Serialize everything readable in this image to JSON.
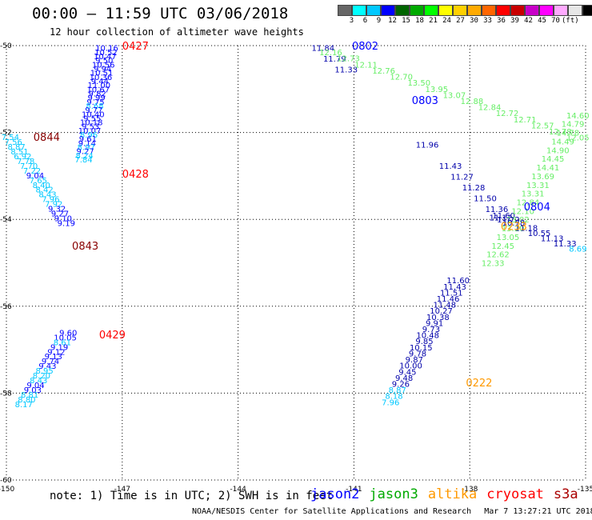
{
  "header": {
    "title": "00:00 – 11:59 UTC 03/06/2018",
    "subtitle": "12 hour collection of altimeter wave heights"
  },
  "colorbar": {
    "colors": [
      "#666666",
      "#00ffff",
      "#00c8ff",
      "#0000ff",
      "#006400",
      "#00aa00",
      "#00ff00",
      "#ffff00",
      "#ffd000",
      "#ffaa00",
      "#ff6600",
      "#ff0000",
      "#c80000",
      "#c800c8",
      "#ff00ff",
      "#ffaaff",
      "#e6e6e6",
      "#000000"
    ],
    "labels": [
      "3",
      "6",
      "9",
      "12",
      "15",
      "18",
      "21",
      "24",
      "27",
      "30",
      "33",
      "36",
      "39",
      "42",
      "45",
      "70"
    ],
    "unit": "(ft)"
  },
  "axes": {
    "x_labels": [
      "-150",
      "-147",
      "-144",
      "-141",
      "-138",
      "-135"
    ],
    "y_labels": [
      "-50",
      "-52",
      "-54",
      "-56",
      "-58",
      "-60"
    ]
  },
  "note": "note: 1) Time is in UTC; 2) SWH is in feet",
  "legend": [
    {
      "name": "jason2",
      "color": "#0000ff"
    },
    {
      "name": "jason3",
      "color": "#00aa00"
    },
    {
      "name": "altika",
      "color": "#ff9900"
    },
    {
      "name": "cryosat",
      "color": "#ff0000"
    },
    {
      "name": "s3a",
      "color": "#aa0000"
    }
  ],
  "footer": {
    "credit": "NOAA/NESDIS Center for Satellite Applications and Research",
    "timestamp": "Mar  7 13:27:21 UTC 2018"
  },
  "map_data": {
    "lon_range": [
      -150,
      -135
    ],
    "lat_range": [
      -60,
      -50
    ],
    "pass_labels": [
      {
        "text": "0427",
        "lon": -147.0,
        "lat": -50.0,
        "color": "#ff0000"
      },
      {
        "text": "0428",
        "lon": -147.0,
        "lat": -52.95,
        "color": "#ff0000"
      },
      {
        "text": "0429",
        "lon": -147.6,
        "lat": -56.65,
        "color": "#ff0000"
      },
      {
        "text": "0844",
        "lon": -149.3,
        "lat": -52.1,
        "color": "#880000"
      },
      {
        "text": "0843",
        "lon": -148.3,
        "lat": -54.6,
        "color": "#880000"
      },
      {
        "text": "0802",
        "lon": -141.05,
        "lat": -50.0,
        "color": "#0000ff"
      },
      {
        "text": "0803",
        "lon": -139.5,
        "lat": -51.25,
        "color": "#0000ff"
      },
      {
        "text": "0804",
        "lon": -136.6,
        "lat": -53.7,
        "color": "#0000ff"
      },
      {
        "text": "0222",
        "lon": -138.1,
        "lat": -57.75,
        "color": "#ff9900"
      },
      {
        "text": "0233",
        "lon": -137.2,
        "lat": -54.15,
        "color": "#ff9900"
      }
    ],
    "tracks": [
      {
        "name": "track-0427",
        "lon_start": -147.4,
        "lon_end": -148.0,
        "lat_start": -50.05,
        "lat_step": 0.095,
        "values": [
          "10.16",
          "10.52",
          "10.47",
          "9.50",
          "10.56",
          "9.94",
          "10.51",
          "10.36",
          "9.44",
          "11.00",
          "10.67",
          "9.82",
          "9.99",
          "9.75",
          "8.68",
          "9.77",
          "10.40",
          "9.55",
          "10.18",
          "9.53",
          "10.07",
          "8.96",
          "9.61",
          "9.14",
          "8.97",
          "9.27",
          "8.24",
          "7.84"
        ],
        "colors": [
          "#0000ff",
          "#0000ff",
          "#0000ff",
          "#0000ff",
          "#0000ff",
          "#0000ff",
          "#0000ff",
          "#0000ff",
          "#0000ff",
          "#0000ff",
          "#0000ff",
          "#0000ff",
          "#0000ff",
          "#0000ff",
          "#00c8ff",
          "#0000ff",
          "#0000ff",
          "#0000ff",
          "#0000ff",
          "#0000ff",
          "#0000ff",
          "#00c8ff",
          "#0000ff",
          "#0000ff",
          "#00c8ff",
          "#0000ff",
          "#00c8ff",
          "#00c8ff"
        ]
      },
      {
        "name": "track-0844",
        "lon_start": -149.9,
        "lon_end": -148.45,
        "lat_start": -52.1,
        "lat_step": 0.11,
        "values": [
          "7.54",
          "7.56",
          "8.87",
          "8.51",
          "6.92",
          "7.78",
          "7.70",
          "7.22",
          "9.04",
          "7.65",
          "8.40",
          "8.42",
          "8.43",
          "7.96",
          "7.92",
          "9.32",
          "9.27",
          "9.10",
          "9.19"
        ],
        "colors": [
          "#00c8ff",
          "#00c8ff",
          "#00c8ff",
          "#00c8ff",
          "#00c8ff",
          "#00c8ff",
          "#00c8ff",
          "#00c8ff",
          "#0000ff",
          "#00c8ff",
          "#00c8ff",
          "#00c8ff",
          "#00c8ff",
          "#00c8ff",
          "#00c8ff",
          "#0000ff",
          "#0000ff",
          "#0000ff",
          "#0000ff"
        ]
      },
      {
        "name": "track-0429",
        "lon_start": -148.4,
        "lon_end": -149.55,
        "lat_start": -56.6,
        "lat_step": 0.11,
        "values": [
          "9.60",
          "10.05",
          "8.61",
          "9.19",
          "9.12",
          "9.13",
          "9.74",
          "9.43",
          "8.95",
          "8.20",
          "8.43",
          "9.04",
          "9.03",
          "8.81",
          "8.80",
          "8.17"
        ],
        "colors": [
          "#0000ff",
          "#0000ff",
          "#00c8ff",
          "#0000ff",
          "#0000ff",
          "#0000ff",
          "#0000ff",
          "#0000ff",
          "#00c8ff",
          "#00c8ff",
          "#00c8ff",
          "#0000ff",
          "#0000ff",
          "#00c8ff",
          "#00c8ff",
          "#00c8ff"
        ]
      },
      {
        "name": "track-0802",
        "lon_start": -141.8,
        "lon_end": -137.0,
        "lat_start": -50.05,
        "lat_step": 0.135,
        "values": [
          "11.84",
          "11.79",
          "11.33",
          "11.96",
          "11.43",
          "11.27",
          "11.28",
          "11.50",
          "11.36",
          "11.60",
          "11.72"
        ],
        "colors": [
          "#0000aa",
          "#0000aa",
          "#0000aa",
          "#0000aa",
          "#0000aa",
          "#0000aa",
          "#0000aa",
          "#0000aa",
          "#0000aa",
          "#0000aa",
          "#0000aa"
        ],
        "gaps": [
          0,
          1,
          2,
          9,
          11,
          12,
          13,
          14,
          15,
          15.6,
          16
        ]
      },
      {
        "name": "track-0803",
        "lon_start": -141.6,
        "lon_end": -135.2,
        "lat_start": -50.15,
        "lat_step": 0.14,
        "values": [
          "12.16",
          "12.73",
          "12.11",
          "12.76",
          "12.70",
          "13.50",
          "13.95",
          "13.07",
          "12.88",
          "12.84",
          "12.72",
          "12.71",
          "12.57",
          "12.78",
          "12.05"
        ],
        "colors": [
          "#66ee66",
          "#66ee66",
          "#66ee66",
          "#66ee66",
          "#66ee66",
          "#66ee66",
          "#66ee66",
          "#66ee66",
          "#66ee66",
          "#66ee66",
          "#66ee66",
          "#66ee66",
          "#66ee66",
          "#66ee66",
          "#66ee66"
        ]
      },
      {
        "name": "track-0804-up",
        "lon_start": -137.4,
        "lon_end": -135.2,
        "lat_start": -55.0,
        "lat_step": -0.2,
        "values": [
          "12.33",
          "12.62",
          "12.45",
          "13.05",
          "13.20",
          "13.02",
          "12.10",
          "12.84",
          "13.31",
          "13.31",
          "13.69",
          "14.41",
          "14.45",
          "14.90",
          "14.49",
          "14.78",
          "14.79",
          "14.60"
        ],
        "colors": [
          "#66ee66",
          "#66ee66",
          "#66ee66",
          "#66ee66",
          "#66ee66",
          "#66ee66",
          "#66ee66",
          "#66ee66",
          "#66ee66",
          "#66ee66",
          "#66ee66",
          "#66ee66",
          "#66ee66",
          "#66ee66",
          "#66ee66",
          "#66ee66",
          "#66ee66",
          "#66ee66"
        ]
      },
      {
        "name": "track-0233",
        "lon_start": -137.2,
        "lon_end": -135.2,
        "lat_start": -53.95,
        "lat_step": 0.12,
        "values": [
          "11.12",
          "10.78",
          "11.18",
          "10.55",
          "11.13",
          "11.33",
          "8.69"
        ],
        "colors": [
          "#0000aa",
          "#0000aa",
          "#0000aa",
          "#0000aa",
          "#0000aa",
          "#0000aa",
          "#00c8ff"
        ]
      },
      {
        "name": "track-0222",
        "lon_start": -138.3,
        "lon_end": -140.05,
        "lat_start": -55.4,
        "lat_step": 0.14,
        "values": [
          "11.60",
          "11.43",
          "11.51",
          "11.46",
          "11.48",
          "10.27",
          "10.38",
          "9.91",
          "9.73",
          "10.48",
          "9.85",
          "10.15",
          "9.78",
          "9.87",
          "10.00",
          "9.45",
          "9.48",
          "9.26",
          "8.87",
          "8.18",
          "7.96"
        ],
        "colors": [
          "#0000aa",
          "#0000aa",
          "#0000aa",
          "#0000aa",
          "#0000aa",
          "#0000aa",
          "#0000aa",
          "#0000aa",
          "#0000aa",
          "#0000aa",
          "#0000aa",
          "#0000aa",
          "#0000aa",
          "#0000aa",
          "#0000aa",
          "#0000aa",
          "#0000aa",
          "#0000aa",
          "#00c8ff",
          "#00c8ff",
          "#00c8ff"
        ]
      }
    ]
  }
}
